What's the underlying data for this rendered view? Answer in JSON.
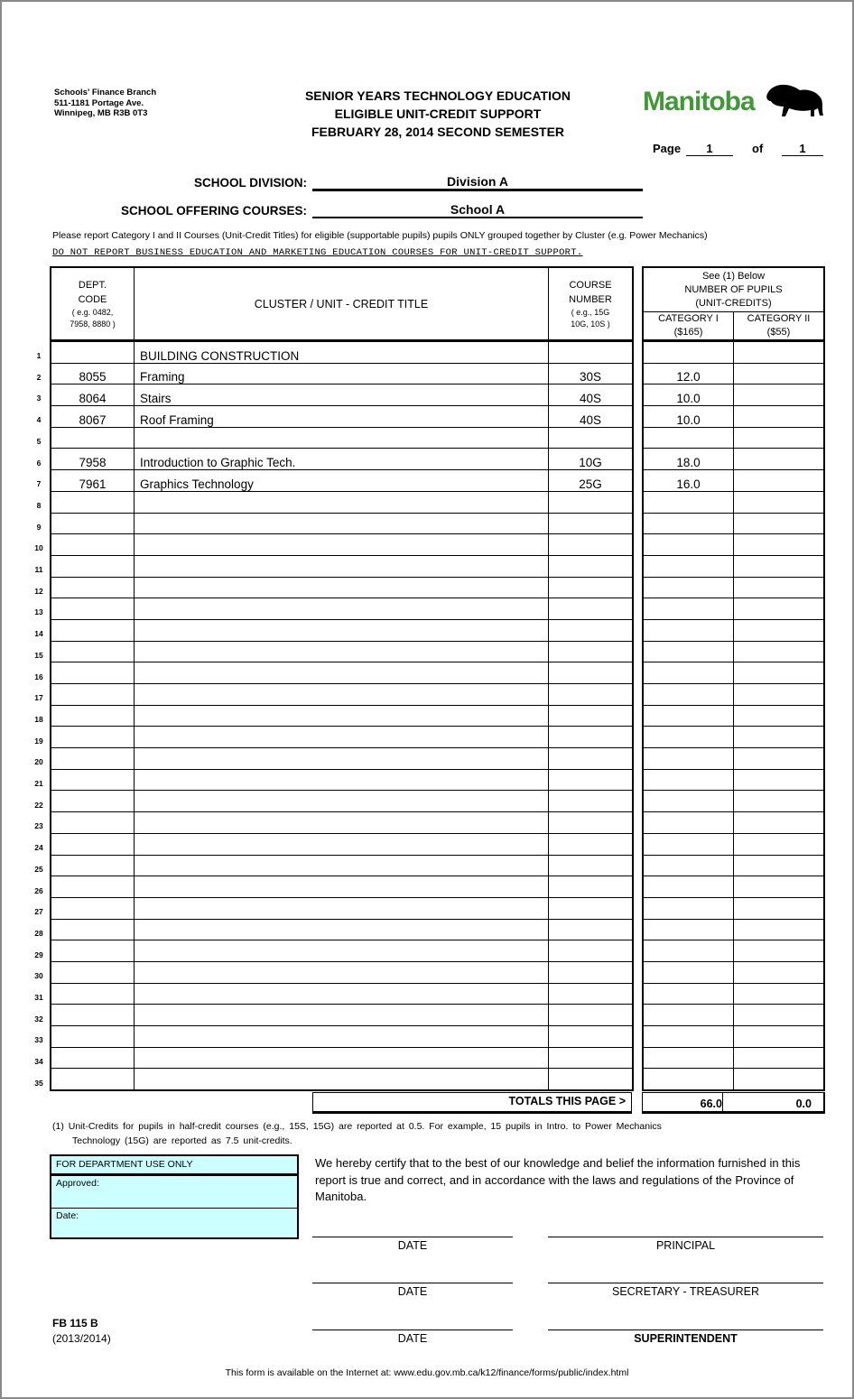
{
  "header": {
    "address": [
      "Schools' Finance Branch",
      "511-1181 Portage Ave.",
      "Winnipeg, MB  R3B 0T3"
    ],
    "title": [
      "SENIOR YEARS TECHNOLOGY EDUCATION",
      "ELIGIBLE UNIT-CREDIT SUPPORT",
      "FEBRUARY 28, 2014  SECOND SEMESTER"
    ],
    "logo_text": "Manitoba",
    "page_label": "Page",
    "page_num": "1",
    "of_label": "of",
    "page_total": "1"
  },
  "fields": {
    "division_label": "SCHOOL DIVISION:",
    "division_value": "Division A",
    "school_label": "SCHOOL OFFERING COURSES:",
    "school_value": "School A"
  },
  "instructions": {
    "note": "Please report Category I and II Courses (Unit-Credit Titles) for eligible (supportable pupils) pupils ONLY grouped together by Cluster (e.g. Power Mechanics)",
    "warning": "DO NOT REPORT BUSINESS EDUCATION AND MARKETING EDUCATION COURSES FOR UNIT-CREDIT SUPPORT."
  },
  "table": {
    "col_dept": [
      "DEPT.",
      "CODE",
      "( e.g. 0482,",
      "7958, 8880 )"
    ],
    "col_title": "CLUSTER / UNIT - CREDIT  TITLE",
    "col_course": [
      "COURSE",
      "NUMBER",
      "( e.g., 15G",
      "10G, 10S )"
    ],
    "pupils_head": [
      "See  (1)  Below",
      "NUMBER  OF  PUPILS",
      "(UNIT-CREDITS)"
    ],
    "cat1": [
      "CATEGORY  I",
      "($165)"
    ],
    "cat2": [
      "CATEGORY  II",
      "($55)"
    ],
    "rows": [
      {
        "num": "1",
        "code": "",
        "title": "BUILDING CONSTRUCTION",
        "course": "",
        "c1": "",
        "c2": ""
      },
      {
        "num": "2",
        "code": "8055",
        "title": "Framing",
        "course": "30S",
        "c1": "12.0",
        "c2": ""
      },
      {
        "num": "3",
        "code": "8064",
        "title": "Stairs",
        "course": "40S",
        "c1": "10.0",
        "c2": ""
      },
      {
        "num": "4",
        "code": "8067",
        "title": "Roof Framing",
        "course": "40S",
        "c1": "10.0",
        "c2": ""
      },
      {
        "num": "5",
        "code": "",
        "title": "",
        "course": "",
        "c1": "",
        "c2": ""
      },
      {
        "num": "6",
        "code": "7958",
        "title": "Introduction to Graphic Tech.",
        "course": "10G",
        "c1": "18.0",
        "c2": ""
      },
      {
        "num": "7",
        "code": "7961",
        "title": "Graphics Technology",
        "course": "25G",
        "c1": "16.0",
        "c2": ""
      },
      {
        "num": "8"
      },
      {
        "num": "9"
      },
      {
        "num": "10"
      },
      {
        "num": "11"
      },
      {
        "num": "12"
      },
      {
        "num": "13"
      },
      {
        "num": "14"
      },
      {
        "num": "15"
      },
      {
        "num": "16"
      },
      {
        "num": "17"
      },
      {
        "num": "18"
      },
      {
        "num": "19"
      },
      {
        "num": "20"
      },
      {
        "num": "21"
      },
      {
        "num": "22"
      },
      {
        "num": "23"
      },
      {
        "num": "24"
      },
      {
        "num": "25"
      },
      {
        "num": "26"
      },
      {
        "num": "27"
      },
      {
        "num": "28"
      },
      {
        "num": "29"
      },
      {
        "num": "30"
      },
      {
        "num": "31"
      },
      {
        "num": "32"
      },
      {
        "num": "33"
      },
      {
        "num": "34"
      },
      {
        "num": "35"
      }
    ],
    "totals_label": "TOTALS THIS PAGE >",
    "total_c1": "66.0",
    "total_c2": "0.0"
  },
  "footnote": [
    "(1)  Unit-Credits  for  pupils  in  half-credit  courses  (e.g.,  15S,  15G)  are  reported  at  0.5.   For  example,  15  pupils  in  Intro.  to  Power  Mechanics",
    "Technology  (15G)  are  reported  as  7.5  unit-credits."
  ],
  "department": {
    "title": "FOR DEPARTMENT USE ONLY",
    "approved": "Approved:",
    "date": "Date:"
  },
  "certification": "We hereby certify that to the best of our knowledge and belief the information furnished in this report is true and correct, and in accordance with the laws and regulations of the Province of Manitoba.",
  "signatures": [
    {
      "date": "DATE",
      "role": "PRINCIPAL"
    },
    {
      "date": "DATE",
      "role": "SECRETARY - TREASURER"
    },
    {
      "date": "DATE",
      "role": "SUPERINTENDENT"
    }
  ],
  "form_id": [
    "FB 115 B",
    "(2013/2014)"
  ],
  "availability": "This form is available on the Internet at: www.edu.gov.mb.ca/k12/finance/forms/public/index.html"
}
